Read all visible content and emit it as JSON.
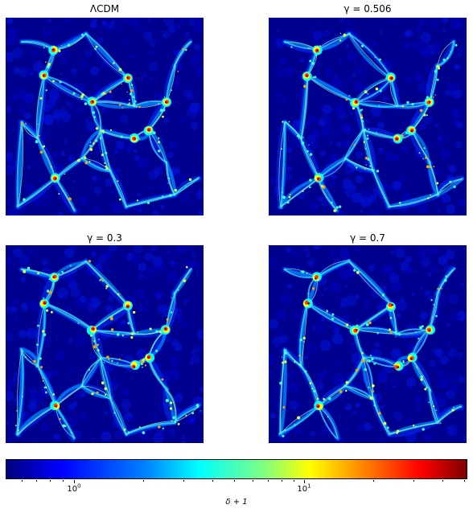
{
  "panels": [
    {
      "title": "ΛCDM",
      "variant": 0
    },
    {
      "title": "γ = 0.506",
      "variant": 1
    },
    {
      "title": "γ = 0.3",
      "variant": 2
    },
    {
      "title": "γ = 0.7",
      "variant": 3
    }
  ],
  "colorbar": {
    "label": "δ + 1",
    "scale": "log",
    "colormap": "jet",
    "tick_labels": [
      {
        "base": "10",
        "exp": "0"
      },
      {
        "base": "10",
        "exp": "1"
      }
    ],
    "colors": [
      "#00007f",
      "#0000ff",
      "#0080ff",
      "#00ffff",
      "#80ff80",
      "#ffff00",
      "#ff8000",
      "#ff0000",
      "#7f0000"
    ]
  }
}
